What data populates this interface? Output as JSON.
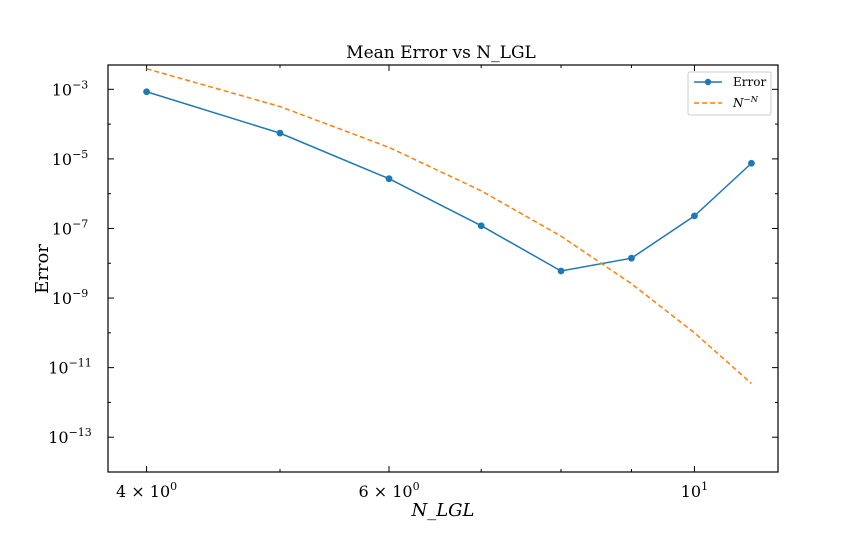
{
  "chart_data": {
    "type": "line",
    "title": "Mean Error vs N_LGL",
    "xlabel": "N_LGL",
    "ylabel": "Error",
    "x_scale": "log",
    "y_scale": "log",
    "xlim": [
      3.75,
      11.5
    ],
    "ylim": [
      1e-14,
      0.005
    ],
    "grid": false,
    "legend_placement": "top-right",
    "x_ticks": [
      {
        "value": 4,
        "label_base": "4 × 10",
        "label_exp": "0"
      },
      {
        "value": 6,
        "label_base": "6 × 10",
        "label_exp": "0"
      },
      {
        "value": 10,
        "label_base": "10",
        "label_exp": "1"
      }
    ],
    "y_ticks": [
      {
        "value": 0.001,
        "label_base": "10",
        "label_exp": "−3"
      },
      {
        "value": 1e-05,
        "label_base": "10",
        "label_exp": "−5"
      },
      {
        "value": 1e-07,
        "label_base": "10",
        "label_exp": "−7"
      },
      {
        "value": 1e-09,
        "label_base": "10",
        "label_exp": "−9"
      },
      {
        "value": 1e-11,
        "label_base": "10",
        "label_exp": "−11"
      },
      {
        "value": 1e-13,
        "label_base": "10",
        "label_exp": "−13"
      }
    ],
    "x": [
      4,
      5,
      6,
      7,
      8,
      9,
      10,
      11
    ],
    "series": [
      {
        "name": "Error",
        "color": "#1f77b4",
        "style": "solid",
        "marker": "circle",
        "values": [
          0.00085,
          5.5e-05,
          2.7e-06,
          1.2e-07,
          6e-09,
          1.4e-08,
          2.3e-07,
          7.5e-06
        ]
      },
      {
        "name_base": "N",
        "name_exp": "−N",
        "color": "#ff7f0e",
        "style": "dashed",
        "marker": "none",
        "values": [
          0.0039,
          0.00032,
          2.14e-05,
          1.21e-06,
          6e-08,
          2.58e-09,
          1e-10,
          3.5e-12
        ]
      }
    ]
  }
}
